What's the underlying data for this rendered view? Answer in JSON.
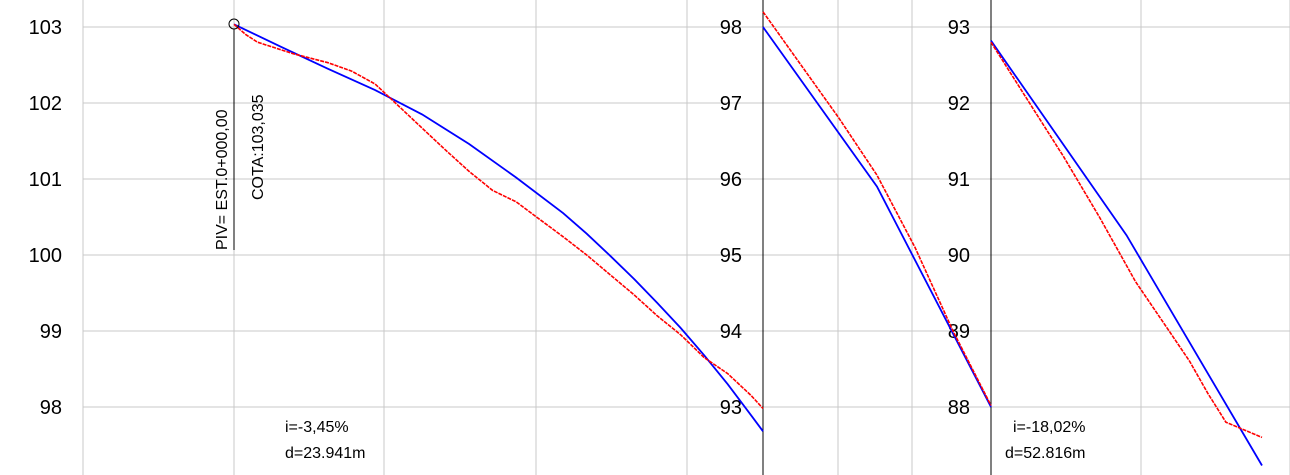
{
  "chart_data": [
    {
      "type": "line",
      "y_ticks": [
        103,
        102,
        101,
        100,
        99,
        98
      ],
      "ylim": [
        97.1,
        103.2
      ],
      "xlim": [
        0,
        45
      ],
      "series": [
        {
          "color": "#0000ff",
          "x": [
            0,
            4,
            8,
            12,
            16,
            20,
            24,
            28,
            30,
            32,
            34,
            36,
            38,
            40,
            42,
            44,
            45
          ],
          "values": [
            103.035,
            102.74,
            102.45,
            102.17,
            101.85,
            101.46,
            101.02,
            100.55,
            100.28,
            99.99,
            99.69,
            99.37,
            99.04,
            98.68,
            98.3,
            97.89,
            97.68
          ]
        },
        {
          "color": "#ff0000",
          "x": [
            0,
            1,
            2,
            3,
            5,
            8,
            10,
            12,
            14,
            16,
            18,
            20,
            22,
            24,
            26,
            28,
            30,
            32,
            34,
            36,
            38,
            40,
            42,
            44,
            45
          ],
          "values": [
            103.035,
            102.9,
            102.8,
            102.75,
            102.65,
            102.53,
            102.42,
            102.25,
            101.96,
            101.67,
            101.38,
            101.1,
            100.85,
            100.7,
            100.47,
            100.24,
            100.0,
            99.74,
            99.48,
            99.2,
            98.95,
            98.65,
            98.44,
            98.15,
            97.98
          ]
        }
      ],
      "annotations": {
        "piv": "PIV= EST.0+000,00",
        "cota": "COTA:103,035",
        "slope": "i=-3,45%",
        "distance": "d=23.941m"
      }
    },
    {
      "type": "line",
      "y_ticks": [
        98,
        97,
        96,
        95,
        94,
        93
      ],
      "ylim": [
        92.3,
        98.3
      ],
      "xlim": [
        0,
        12
      ],
      "series": [
        {
          "color": "#0000ff",
          "x": [
            0,
            6,
            12
          ],
          "values": [
            98.0,
            95.9,
            93.0
          ]
        },
        {
          "color": "#ff0000",
          "x": [
            0,
            2,
            4,
            6,
            8,
            10,
            12
          ],
          "values": [
            98.2,
            97.5,
            96.8,
            96.05,
            95.1,
            94.0,
            93.02
          ]
        }
      ],
      "annotations": {}
    },
    {
      "type": "line",
      "y_ticks": [
        93,
        92,
        91,
        90,
        89,
        88
      ],
      "ylim": [
        87.3,
        93.3
      ],
      "xlim": [
        0,
        30
      ],
      "series": [
        {
          "color": "#0000ff",
          "x": [
            0,
            15,
            30
          ],
          "values": [
            92.82,
            90.26,
            87.23
          ]
        },
        {
          "color": "#ff0000",
          "x": [
            0,
            4,
            8,
            12,
            16,
            20,
            22,
            24,
            26,
            30
          ],
          "values": [
            92.8,
            92.05,
            91.3,
            90.5,
            89.65,
            88.95,
            88.6,
            88.18,
            87.8,
            87.6
          ]
        }
      ],
      "annotations": {
        "slope": "i=-18,02%",
        "distance": "d=52.816m"
      }
    }
  ]
}
